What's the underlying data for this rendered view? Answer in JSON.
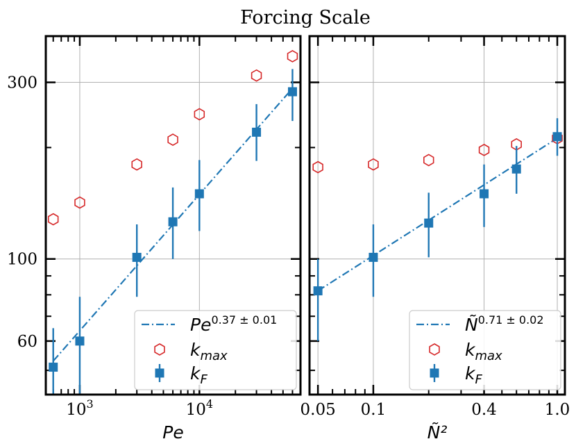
{
  "title": "Forcing Scale",
  "colors": {
    "kF": "#1f77b4",
    "kmax": "#d62728",
    "fit": "#1f77b4",
    "grid": "#b0b0b0"
  },
  "chart_data": [
    {
      "type": "scatter",
      "xscale": "log",
      "yscale": "log",
      "xlabel": "Pe",
      "xlim": [
        520,
        70000
      ],
      "ylim": [
        43,
        400
      ],
      "x_ticks": [
        {
          "value": 1000,
          "base": "10",
          "exp": "3"
        },
        {
          "value": 10000,
          "base": "10",
          "exp": "4"
        }
      ],
      "y_ticks": [
        {
          "value": 60,
          "label": "60"
        },
        {
          "value": 100,
          "label": "100"
        },
        {
          "value": 300,
          "label": "300"
        }
      ],
      "grid": true,
      "legend_position": "lower-right",
      "legend": {
        "fit_base": "Pe",
        "fit_exp": "0.37 ± 0.01",
        "kmax_base": "k",
        "kmax_sub": "max",
        "kF_base": "k",
        "kF_sub": "F"
      },
      "series": [
        {
          "name": "k_F",
          "marker": "square",
          "x": [
            600,
            1000,
            3000,
            6000,
            10000,
            30000,
            60000
          ],
          "y": [
            51,
            60,
            101,
            126,
            150,
            220,
            283
          ],
          "err_low": [
            11,
            18,
            22,
            26,
            31,
            36,
            47
          ],
          "err_high": [
            14,
            19,
            23,
            30,
            35,
            42,
            43
          ]
        },
        {
          "name": "k_max",
          "marker": "hexagon",
          "x": [
            600,
            1000,
            3000,
            6000,
            10000,
            30000,
            60000
          ],
          "y": [
            128,
            142,
            180,
            210,
            246,
            313,
            353
          ]
        },
        {
          "name": "fit",
          "style": "dash-dot",
          "x": [
            600,
            60000
          ],
          "y": [
            53,
            289
          ]
        }
      ]
    },
    {
      "type": "scatter",
      "xscale": "log",
      "yscale": "log",
      "xlabel": "Ñ²",
      "xlim": [
        0.045,
        1.1
      ],
      "ylim": [
        43,
        400
      ],
      "x_ticks": [
        {
          "value": 0.05,
          "label": "0.05"
        },
        {
          "value": 0.1,
          "label": "0.1"
        },
        {
          "value": 0.4,
          "label": "0.4"
        },
        {
          "value": 1.0,
          "label": "1.0"
        }
      ],
      "grid": true,
      "legend_position": "lower-right",
      "legend": {
        "fit_base": "Ñ",
        "fit_exp": "0.71 ± 0.02",
        "kmax_base": "k",
        "kmax_sub": "max",
        "kF_base": "k",
        "kF_sub": "F"
      },
      "series": [
        {
          "name": "k_F",
          "marker": "square",
          "x": [
            0.05,
            0.1,
            0.2,
            0.4,
            0.6,
            1.0
          ],
          "y": [
            82,
            101,
            125,
            150,
            175,
            214
          ],
          "err_low": [
            22,
            22,
            24,
            28,
            25,
            24
          ],
          "err_high": [
            18,
            23,
            26,
            30,
            27,
            26
          ]
        },
        {
          "name": "k_max",
          "marker": "hexagon",
          "x": [
            0.05,
            0.1,
            0.2,
            0.4,
            0.6,
            1.0
          ],
          "y": [
            177,
            180,
            185,
            197,
            204,
            212
          ]
        },
        {
          "name": "fit",
          "style": "dash-dot",
          "x": [
            0.05,
            1.0
          ],
          "y": [
            82,
            212
          ]
        }
      ]
    }
  ]
}
